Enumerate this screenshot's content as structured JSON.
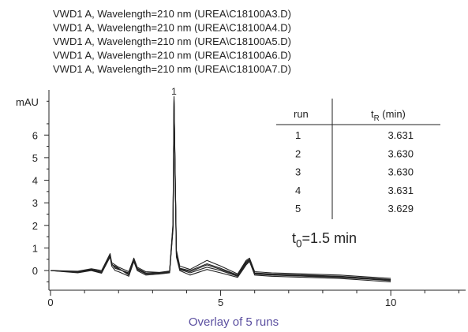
{
  "chart_data": {
    "type": "line",
    "caption": "Overlay of 5 runs",
    "caption_color": "#5b4fa0",
    "y_label": "mAU",
    "x": [
      0,
      0.8,
      1.2,
      1.5,
      1.75,
      1.8,
      1.9,
      2.0,
      2.3,
      2.45,
      2.55,
      2.8,
      3.2,
      3.5,
      3.6,
      3.63,
      3.7,
      3.8,
      4.1,
      4.6,
      5.0,
      5.5,
      5.75,
      5.85,
      6.0,
      6.5,
      7.5,
      8.5,
      9.5,
      10
    ],
    "series": [
      {
        "name": "VWD1 A, Wavelength=210 nm (UREA\\C18100A3.D)",
        "color": "#222222",
        "values": [
          0,
          -0.05,
          0.05,
          -0.05,
          0.7,
          0.3,
          0.1,
          0.05,
          -0.1,
          0.5,
          0.1,
          -0.1,
          -0.1,
          -0.05,
          2.0,
          7.6,
          0.8,
          0.1,
          0,
          0.3,
          0.1,
          -0.2,
          0.4,
          0.5,
          -0.1,
          -0.15,
          -0.2,
          -0.25,
          -0.35,
          -0.4
        ]
      },
      {
        "name": "VWD1 A, Wavelength=210 nm (UREA\\C18100A4.D)",
        "color": "#222222",
        "values": [
          0,
          -0.08,
          0.02,
          -0.1,
          0.65,
          0.25,
          0.2,
          0.1,
          -0.2,
          0.45,
          0.05,
          -0.15,
          -0.12,
          -0.08,
          1.9,
          7.5,
          0.7,
          0.05,
          -0.1,
          0.15,
          0,
          -0.25,
          0.3,
          0.45,
          -0.15,
          -0.2,
          -0.25,
          -0.3,
          -0.4,
          -0.45
        ]
      },
      {
        "name": "VWD1 A, Wavelength=210 nm (UREA\\C18100A5.D)",
        "color": "#222222",
        "values": [
          0,
          -0.03,
          0.08,
          0,
          0.75,
          0.35,
          0.25,
          0.15,
          -0.05,
          0.55,
          0.15,
          -0.05,
          -0.08,
          -0.02,
          2.1,
          7.7,
          0.9,
          0.2,
          0.05,
          0.45,
          0.2,
          -0.15,
          0.45,
          0.55,
          -0.05,
          -0.1,
          -0.15,
          -0.2,
          -0.3,
          -0.35
        ]
      },
      {
        "name": "VWD1 A, Wavelength=210 nm (UREA\\C18100A6.D)",
        "color": "#222222",
        "values": [
          0,
          -0.1,
          0,
          -0.12,
          0.6,
          0.2,
          0,
          -0.05,
          -0.25,
          0.4,
          0,
          -0.2,
          -0.15,
          -0.1,
          1.8,
          7.45,
          0.6,
          0,
          -0.2,
          0.05,
          -0.1,
          -0.3,
          0.25,
          0.4,
          -0.2,
          -0.25,
          -0.3,
          -0.35,
          -0.45,
          -0.5
        ]
      },
      {
        "name": "VWD1 A, Wavelength=210 nm (UREA\\C18100A7.D)",
        "color": "#222222",
        "values": [
          0,
          -0.06,
          0.04,
          -0.08,
          0.68,
          0.28,
          0.15,
          0.08,
          -0.15,
          0.48,
          0.08,
          -0.12,
          -0.1,
          -0.06,
          1.95,
          7.55,
          0.75,
          0.08,
          -0.05,
          0.25,
          0.05,
          -0.22,
          0.35,
          0.48,
          -0.12,
          -0.18,
          -0.22,
          -0.28,
          -0.38,
          -0.42
        ]
      }
    ],
    "xlim": [
      0,
      12.2
    ],
    "ylim": [
      -0.8,
      8
    ],
    "xticks": [
      0,
      5,
      10
    ],
    "xminorticks": [
      1,
      2,
      3,
      4,
      6,
      7,
      8,
      9,
      11,
      12
    ],
    "yticks": [
      0,
      1,
      2,
      3,
      4,
      5,
      6
    ],
    "yminorticks": [
      -0.5,
      0.5,
      1.5,
      2.5,
      3.5,
      4.5,
      5.5,
      6.5,
      7.5
    ],
    "peak_label": {
      "text": "1",
      "x": 3.63
    },
    "table": {
      "columns": [
        {
          "text": "run"
        },
        {
          "text": "t",
          "sub": "R",
          "rest": " (min)"
        }
      ],
      "rows": [
        [
          "1",
          "3.631"
        ],
        [
          "2",
          "3.630"
        ],
        [
          "3",
          "3.630"
        ],
        [
          "4",
          "3.631"
        ],
        [
          "5",
          "3.629"
        ]
      ]
    },
    "dead_time": {
      "text": "t",
      "sub": "0",
      "rest": "=1.5 min"
    }
  }
}
